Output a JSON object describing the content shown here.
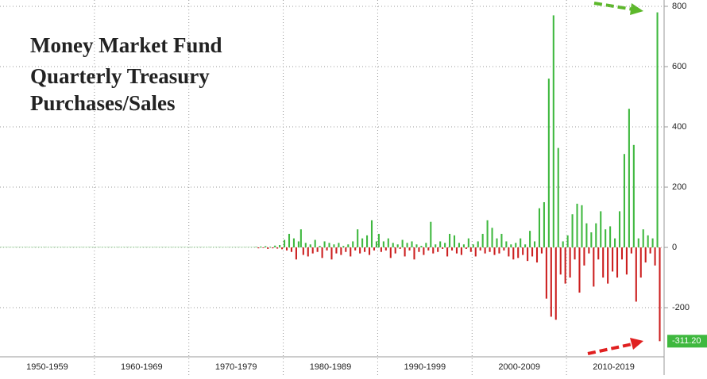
{
  "chart_data": {
    "type": "bar",
    "title": [
      "Money Market Fund",
      "Quarterly Treasury",
      "Purchases/Sales"
    ],
    "groups": [
      {
        "label": "1950-1959",
        "values": [
          1,
          1,
          1,
          1,
          1,
          1,
          1,
          1,
          1,
          1,
          1,
          1,
          1,
          1,
          1,
          1,
          1,
          1,
          1,
          1,
          1,
          1,
          1,
          1,
          1,
          1,
          1,
          1,
          1,
          1,
          1,
          1,
          1,
          1,
          1,
          1,
          1,
          1,
          1,
          1
        ]
      },
      {
        "label": "1960-1969",
        "values": [
          1,
          1,
          1,
          1,
          1,
          1,
          1,
          1,
          1,
          1,
          1,
          1,
          1,
          1,
          1,
          1,
          1,
          1,
          1,
          1,
          1,
          1,
          1,
          1,
          1,
          1,
          1,
          1,
          1,
          1,
          1,
          1,
          1,
          1,
          1,
          1,
          1,
          1,
          1,
          1
        ]
      },
      {
        "label": "1970-1979",
        "values": [
          1,
          1,
          1,
          1,
          1,
          1,
          1,
          1,
          1,
          1,
          1,
          1,
          1,
          1,
          1,
          1,
          1,
          1,
          1,
          1,
          1,
          1,
          1,
          1,
          1,
          1,
          1,
          1,
          2,
          -3,
          3,
          -2,
          4,
          -5,
          2,
          -3,
          6,
          -4,
          8,
          -6
        ]
      },
      {
        "label": "1980-1989",
        "values": [
          25,
          -10,
          45,
          -15,
          30,
          -40,
          20,
          60,
          -25,
          15,
          -30,
          10,
          -20,
          25,
          -15,
          5,
          -35,
          20,
          -10,
          15,
          -40,
          10,
          -20,
          15,
          -25,
          5,
          -15,
          10,
          -30,
          20,
          -10,
          60,
          -20,
          30,
          -15,
          40,
          -25,
          90,
          -10,
          20
        ]
      },
      {
        "label": "1990-1999",
        "values": [
          45,
          -15,
          20,
          -10,
          30,
          -35,
          15,
          -20,
          10,
          -5,
          25,
          -30,
          15,
          -10,
          20,
          -40,
          10,
          -15,
          5,
          -25,
          15,
          -10,
          85,
          -20,
          10,
          -15,
          20,
          -5,
          15,
          -30,
          45,
          -10,
          40,
          -20,
          15,
          -25,
          10,
          -5,
          30,
          -15
        ]
      },
      {
        "label": "2000-2009",
        "values": [
          10,
          -30,
          20,
          -10,
          45,
          -20,
          90,
          -15,
          65,
          -25,
          30,
          -20,
          45,
          -10,
          20,
          -30,
          10,
          -40,
          15,
          -35,
          30,
          -25,
          10,
          -45,
          55,
          -30,
          20,
          -50,
          130,
          -20,
          150,
          -170,
          560,
          -230,
          770,
          -240,
          330,
          -90,
          20,
          -120
        ]
      },
      {
        "label": "2010-2019",
        "values": [
          40,
          -100,
          110,
          -40,
          145,
          -150,
          140,
          -60,
          80,
          -20,
          50,
          -130,
          80,
          -40,
          120,
          -100,
          60,
          -120,
          70,
          -80,
          30,
          -100,
          120,
          -40,
          310,
          -90,
          460,
          -20,
          340,
          -180,
          30,
          -100,
          60,
          -50,
          40,
          -20,
          30,
          -60,
          780,
          -311.2
        ]
      }
    ],
    "last_label": {
      "value": -311.2,
      "label": "-311.20"
    },
    "colors": {
      "positive": "#3fb83f",
      "negative": "#cc1f1f"
    },
    "ylim": [
      -363,
      821
    ],
    "yticks": [
      -200,
      0,
      200,
      400,
      600,
      800
    ],
    "grid": true
  }
}
